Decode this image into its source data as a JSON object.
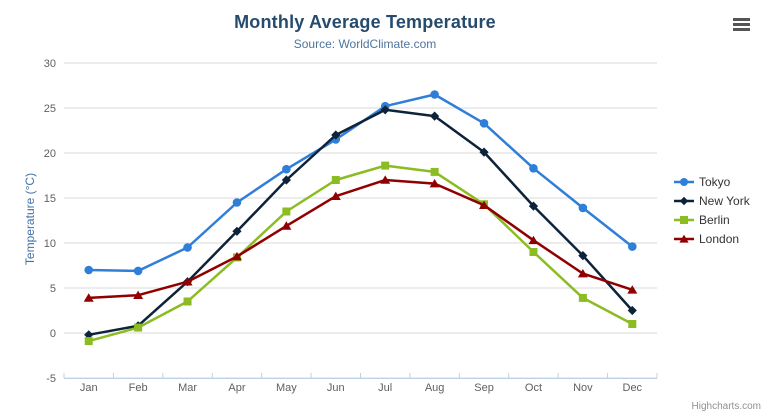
{
  "chart_data": {
    "type": "line",
    "title": "Monthly Average Temperature",
    "subtitle": "Source: WorldClimate.com",
    "categories": [
      "Jan",
      "Feb",
      "Mar",
      "Apr",
      "May",
      "Jun",
      "Jul",
      "Aug",
      "Sep",
      "Oct",
      "Nov",
      "Dec"
    ],
    "xlabel": "",
    "ylabel": "Temperature (°C)",
    "ylim": [
      -5,
      30
    ],
    "yticks": [
      -5,
      0,
      5,
      10,
      15,
      20,
      25,
      30
    ],
    "grid": "horizontal",
    "legend_position": "right",
    "series": [
      {
        "name": "Tokyo",
        "marker": "circle",
        "color": "#2f7ed8",
        "values": [
          7.0,
          6.9,
          9.5,
          14.5,
          18.2,
          21.5,
          25.2,
          26.5,
          23.3,
          18.3,
          13.9,
          9.6
        ]
      },
      {
        "name": "New York",
        "marker": "diamond",
        "color": "#0d233a",
        "values": [
          -0.2,
          0.8,
          5.7,
          11.3,
          17.0,
          22.0,
          24.8,
          24.1,
          20.1,
          14.1,
          8.6,
          2.5
        ]
      },
      {
        "name": "Berlin",
        "marker": "square",
        "color": "#8bbc21",
        "values": [
          -0.9,
          0.6,
          3.5,
          8.4,
          13.5,
          17.0,
          18.6,
          17.9,
          14.3,
          9.0,
          3.9,
          1.0
        ]
      },
      {
        "name": "London",
        "marker": "triangle",
        "color": "#910000",
        "values": [
          3.9,
          4.2,
          5.7,
          8.5,
          11.9,
          15.2,
          17.0,
          16.6,
          14.2,
          10.3,
          6.6,
          4.8
        ]
      }
    ]
  },
  "menu": {
    "icon": "hamburger-icon"
  },
  "credits": {
    "label": "Highcharts.com"
  },
  "ui_colors": {
    "title": "#274b6d",
    "subtitle": "#4d759e",
    "axis_title": "#4572a7",
    "tick_label": "#606060",
    "gridline": "#d8d8d8",
    "axis_line": "#c0d0e0",
    "legend_text": "#333333",
    "credits": "#909090",
    "menu_icon": "#555555",
    "background": "#ffffff"
  }
}
